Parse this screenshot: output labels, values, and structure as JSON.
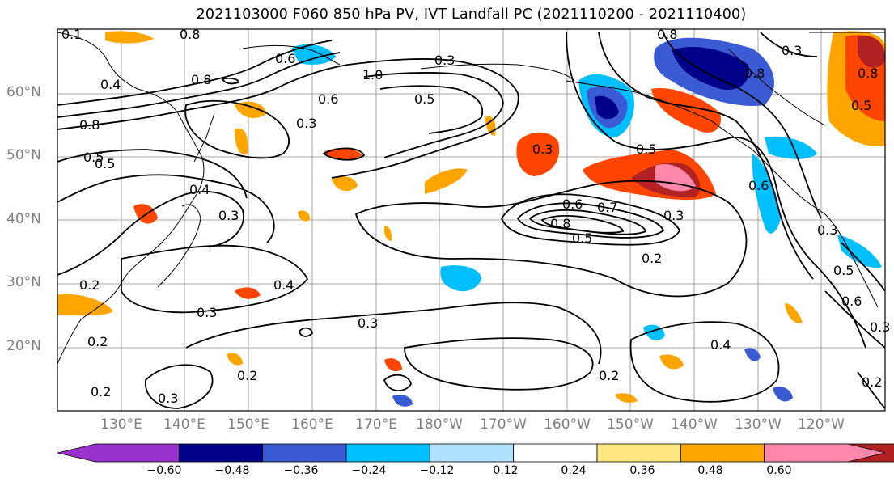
{
  "title": "2021103000 F060 850 hPa PV, IVT Landfall PC (2021110200 - 2021110400)",
  "lat_labels": [
    "60°N",
    "50°N",
    "40°N",
    "30°N",
    "20°N"
  ],
  "lon_labels": [
    "130°E",
    "140°E",
    "150°E",
    "160°E",
    "170°E",
    "180°W",
    "170°W",
    "160°W",
    "150°W",
    "140°W",
    "130°W",
    "120°W"
  ],
  "colorbar": {
    "tick_labels": [
      "−0.60",
      "−0.48",
      "−0.36",
      "−0.24",
      "−0.12",
      "0.12",
      "0.24",
      "0.36",
      "0.48",
      "0.60"
    ],
    "colors": [
      "#9932cc",
      "#00008b",
      "#3a5bd4",
      "#00bfff",
      "#b0e2ff",
      "#ffffff",
      "#ffe680",
      "#ffa500",
      "#ff4500",
      "#b22222",
      "#ff88aa"
    ]
  },
  "contour_labels": [
    "0.1",
    "0.8",
    "0.6",
    "1.0",
    "0.3",
    "0.4",
    "0.8",
    "0.6",
    "0.5",
    "0.5",
    "0.8",
    "0.8",
    "0.3",
    "0.3",
    "0.5",
    "0.5",
    "0.4",
    "0.3",
    "0.2",
    "0.2",
    "0.4",
    "0.3",
    "0.3",
    "0.2",
    "0.2",
    "0.3",
    "0.6",
    "0.8",
    "0.7",
    "0.5",
    "0.2",
    "0.3",
    "0.5",
    "0.3",
    "0.8",
    "0.8",
    "0.6",
    "0.3",
    "0.5",
    "0.6",
    "0.3",
    "0.4",
    "0.2",
    "0.2"
  ]
}
